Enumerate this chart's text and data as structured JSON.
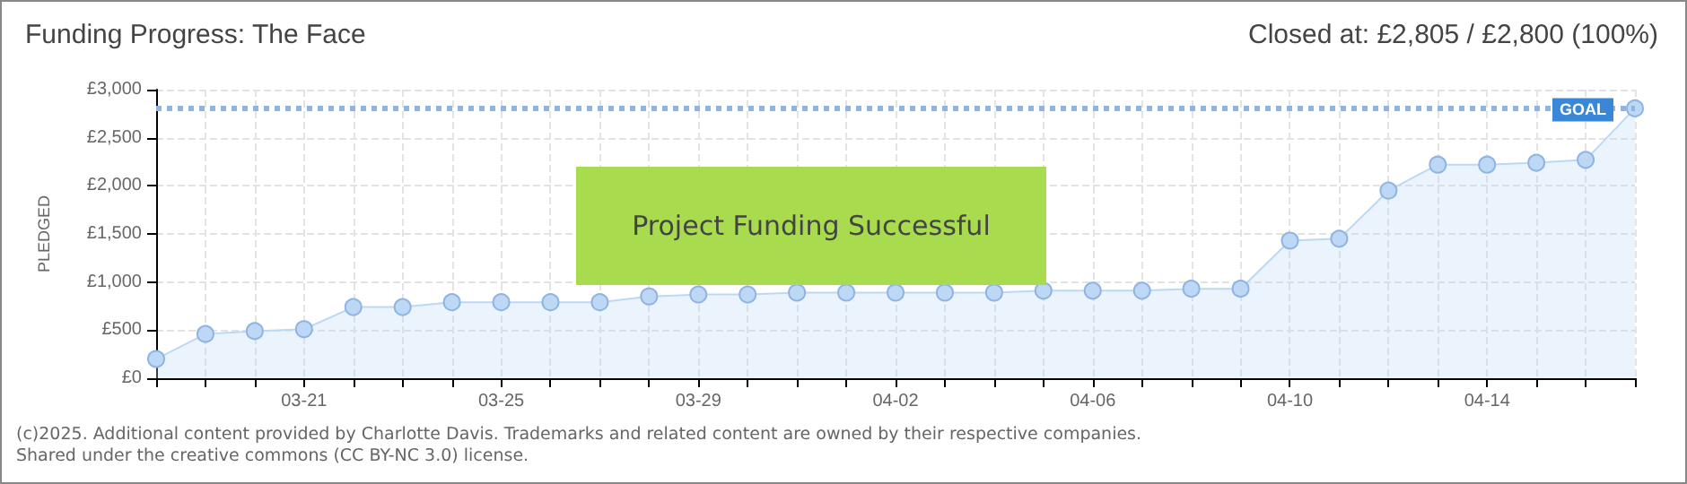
{
  "chart_data": {
    "type": "area",
    "title": "Funding Progress: The Face",
    "subtitle": "Closed at: £2,805 / £2,800 (100%)",
    "ylabel": "PLEDGED",
    "annotations": [
      "Project Funding Successful",
      "(c)2025. Additional content provided by Charlotte Davis. Trademarks and related content are owned by their respective companies.",
      "Shared under the creative commons (CC BY-NC 3.0) license."
    ],
    "x": [
      "--03-18",
      "--03-19",
      "--03-20",
      "--03-21",
      "--03-22",
      "--03-23",
      "--03-24",
      "--03-25",
      "--03-26",
      "--03-27",
      "--03-28",
      "--03-29",
      "--03-30",
      "--03-31",
      "--04-01",
      "--04-02",
      "--04-03",
      "--04-04",
      "--04-05",
      "--04-06",
      "--04-07",
      "--04-08",
      "--04-09",
      "--04-10",
      "--04-11",
      "--04-12",
      "--04-13",
      "--04-14",
      "--04-15",
      "--04-16",
      "--04-17"
    ],
    "series": [
      {
        "color": "#bcd8f5",
        "values": [
          200,
          460,
          490,
          510,
          740,
          740,
          790,
          790,
          790,
          790,
          850,
          870,
          870,
          890,
          890,
          890,
          890,
          890,
          910,
          910,
          910,
          930,
          930,
          1430,
          1450,
          1950,
          2220,
          2220,
          2240,
          2270,
          2805
        ]
      }
    ],
    "xlim": [
      "--03-18",
      "--04-17"
    ],
    "xticks": [
      {
        "value": "--03-18",
        "label": null
      },
      {
        "value": "--03-19",
        "label": null
      },
      {
        "value": "--03-20",
        "label": null
      },
      {
        "value": "--03-21",
        "label": "03-21"
      },
      {
        "value": "--03-22",
        "label": null
      },
      {
        "value": "--03-23",
        "label": null
      },
      {
        "value": "--03-24",
        "label": null
      },
      {
        "value": "--03-25",
        "label": "03-25"
      },
      {
        "value": "--03-26",
        "label": null
      },
      {
        "value": "--03-27",
        "label": null
      },
      {
        "value": "--03-28",
        "label": null
      },
      {
        "value": "--03-29",
        "label": "03-29"
      },
      {
        "value": "--03-30",
        "label": null
      },
      {
        "value": "--03-31",
        "label": null
      },
      {
        "value": "--04-01",
        "label": null
      },
      {
        "value": "--04-02",
        "label": "04-02"
      },
      {
        "value": "--04-03",
        "label": null
      },
      {
        "value": "--04-04",
        "label": null
      },
      {
        "value": "--04-05",
        "label": null
      },
      {
        "value": "--04-06",
        "label": "04-06"
      },
      {
        "value": "--04-07",
        "label": null
      },
      {
        "value": "--04-08",
        "label": null
      },
      {
        "value": "--04-09",
        "label": null
      },
      {
        "value": "--04-10",
        "label": "04-10"
      },
      {
        "value": "--04-11",
        "label": null
      },
      {
        "value": "--04-12",
        "label": null
      },
      {
        "value": "--04-13",
        "label": null
      },
      {
        "value": "--04-14",
        "label": "04-14"
      },
      {
        "value": "--04-15",
        "label": null
      },
      {
        "value": "--04-16",
        "label": null
      },
      {
        "value": "--04-17",
        "label": null
      }
    ],
    "ylim": [
      0,
      3000
    ],
    "yticks": [
      {
        "value": 0,
        "label": "£0"
      },
      {
        "value": 500,
        "label": "£500"
      },
      {
        "value": 1000,
        "label": "£1,000"
      },
      {
        "value": 1500,
        "label": "£1,500"
      },
      {
        "value": 2000,
        "label": "£2,000"
      },
      {
        "value": 2500,
        "label": "£2,500"
      },
      {
        "value": 3000,
        "label": "£3,000"
      }
    ],
    "ref_lines": [
      {
        "axis": "y",
        "value": 2800,
        "label": "GOAL",
        "color": "#8fb4e3",
        "line_style": "dotted"
      }
    ],
    "grid": true,
    "marker": "circle"
  }
}
